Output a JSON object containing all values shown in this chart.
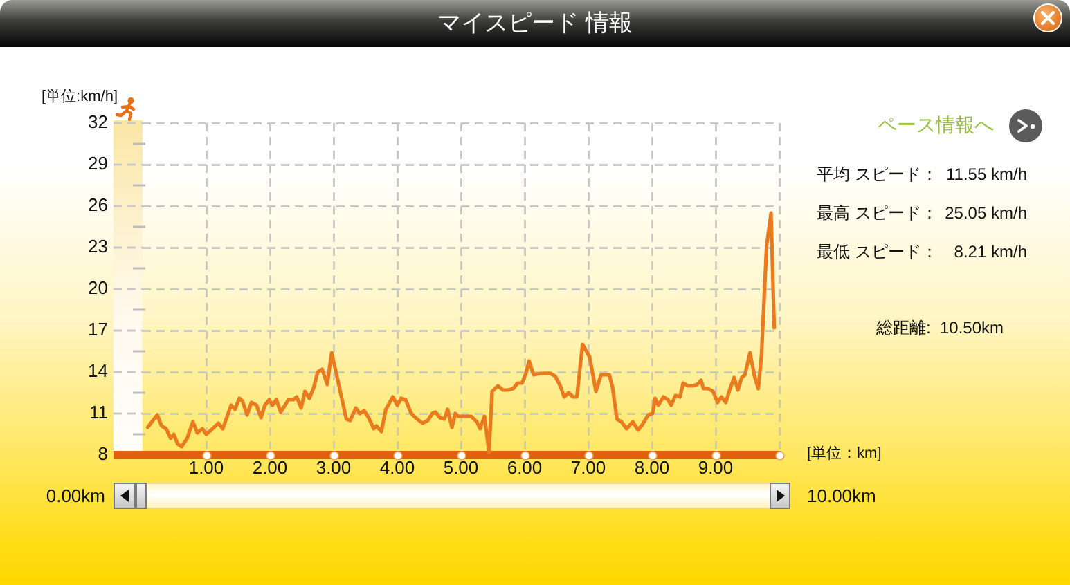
{
  "chart_data": {
    "type": "line",
    "title": "マイスピード 情報",
    "xlabel": "[単位：km]",
    "ylabel": "[単位:km/h]",
    "x": [
      0.08,
      0.23,
      0.3,
      0.37,
      0.44,
      0.49,
      0.55,
      0.61,
      0.7,
      0.79,
      0.86,
      0.94,
      1.0,
      1.1,
      1.19,
      1.26,
      1.39,
      1.45,
      1.52,
      1.57,
      1.64,
      1.71,
      1.79,
      1.86,
      1.92,
      1.99,
      2.04,
      2.1,
      2.17,
      2.29,
      2.37,
      2.42,
      2.49,
      2.55,
      2.62,
      2.69,
      2.75,
      2.82,
      2.9,
      2.97,
      3.09,
      3.2,
      3.26,
      3.35,
      3.41,
      3.48,
      3.55,
      3.63,
      3.67,
      3.75,
      3.82,
      3.93,
      4.0,
      4.06,
      4.13,
      4.22,
      4.31,
      4.4,
      4.48,
      4.55,
      4.6,
      4.67,
      4.74,
      4.79,
      4.86,
      4.91,
      4.96,
      5.04,
      5.16,
      5.25,
      5.3,
      5.37,
      5.44,
      5.49,
      5.58,
      5.66,
      5.74,
      5.82,
      5.89,
      5.96,
      6.02,
      6.07,
      6.14,
      6.25,
      6.4,
      6.48,
      6.56,
      6.62,
      6.69,
      6.76,
      6.82,
      6.91,
      7.02,
      7.12,
      7.2,
      7.33,
      7.38,
      7.45,
      7.52,
      7.6,
      7.7,
      7.78,
      7.85,
      7.94,
      8.01,
      8.05,
      8.1,
      8.18,
      8.25,
      8.3,
      8.37,
      8.44,
      8.49,
      8.56,
      8.65,
      8.71,
      8.77,
      8.81,
      8.88,
      8.96,
      9.03,
      9.09,
      9.16,
      9.22,
      9.29,
      9.35,
      9.41,
      9.46,
      9.54,
      9.61,
      9.67,
      9.72,
      9.8,
      9.87,
      9.92
    ],
    "values": [
      10.0,
      10.9,
      10.1,
      9.9,
      9.2,
      9.5,
      8.8,
      8.6,
      9.2,
      10.4,
      9.6,
      9.9,
      9.5,
      9.9,
      10.3,
      9.9,
      11.6,
      11.3,
      12.1,
      11.9,
      10.9,
      11.8,
      11.6,
      10.7,
      11.6,
      12.0,
      11.6,
      12.0,
      11.1,
      12.0,
      12.0,
      12.2,
      11.4,
      12.6,
      12.1,
      12.9,
      14.0,
      14.2,
      13.1,
      15.4,
      12.9,
      10.6,
      10.5,
      11.4,
      11.0,
      11.2,
      10.7,
      9.9,
      10.1,
      9.7,
      11.3,
      12.2,
      11.6,
      12.1,
      12.0,
      11.0,
      10.6,
      10.3,
      10.5,
      11.0,
      11.1,
      10.7,
      10.6,
      11.3,
      10.0,
      11.0,
      10.8,
      10.8,
      10.8,
      10.4,
      9.9,
      10.8,
      8.2,
      12.6,
      13.0,
      12.7,
      12.7,
      12.8,
      13.2,
      13.2,
      13.9,
      14.8,
      13.8,
      13.9,
      13.9,
      13.7,
      13.0,
      12.2,
      12.5,
      12.2,
      12.2,
      16.0,
      15.1,
      12.6,
      13.8,
      13.8,
      12.9,
      10.6,
      10.4,
      9.9,
      10.4,
      9.8,
      10.2,
      10.9,
      11.0,
      12.1,
      11.6,
      12.2,
      12.0,
      11.6,
      12.3,
      12.2,
      13.2,
      13.0,
      13.0,
      13.1,
      13.4,
      12.8,
      12.8,
      12.6,
      11.8,
      12.2,
      11.8,
      12.7,
      13.6,
      12.7,
      13.6,
      13.8,
      15.4,
      13.7,
      12.8,
      15.2,
      23.1,
      25.5,
      17.2
    ],
    "color": "#ea7a1e",
    "xlim": [
      0,
      10
    ],
    "xticks": [
      {
        "value": 1,
        "label": "1.00"
      },
      {
        "value": 2,
        "label": "2.00"
      },
      {
        "value": 3,
        "label": "3.00"
      },
      {
        "value": 4,
        "label": "4.00"
      },
      {
        "value": 5,
        "label": "5.00"
      },
      {
        "value": 6,
        "label": "6.00"
      },
      {
        "value": 7,
        "label": "7.00"
      },
      {
        "value": 8,
        "label": "8.00"
      },
      {
        "value": 9,
        "label": "9.00"
      },
      {
        "value": 10,
        "label": null
      }
    ],
    "ylim": [
      8,
      32
    ],
    "yticks": [
      8,
      {
        "value": 9.5,
        "label": null
      },
      11,
      {
        "value": 12.5,
        "label": null
      },
      14,
      {
        "value": 15.5,
        "label": null
      },
      17,
      {
        "value": 18.5,
        "label": null
      },
      20,
      {
        "value": 21.5,
        "label": null
      },
      23,
      {
        "value": 24.5,
        "label": null
      },
      26,
      {
        "value": 27.5,
        "label": null
      },
      29,
      {
        "value": 30.5,
        "label": null
      },
      32
    ],
    "grid": true,
    "annotations": [
      "ペース情報へ",
      "平均 スピード：",
      "11.55 km/h",
      "最高 スピード：",
      "25.05 km/h",
      "最低 スピード：",
      "8.21 km/h",
      "総距離:",
      "10.50km",
      "0.00km",
      "10.00km"
    ]
  }
}
